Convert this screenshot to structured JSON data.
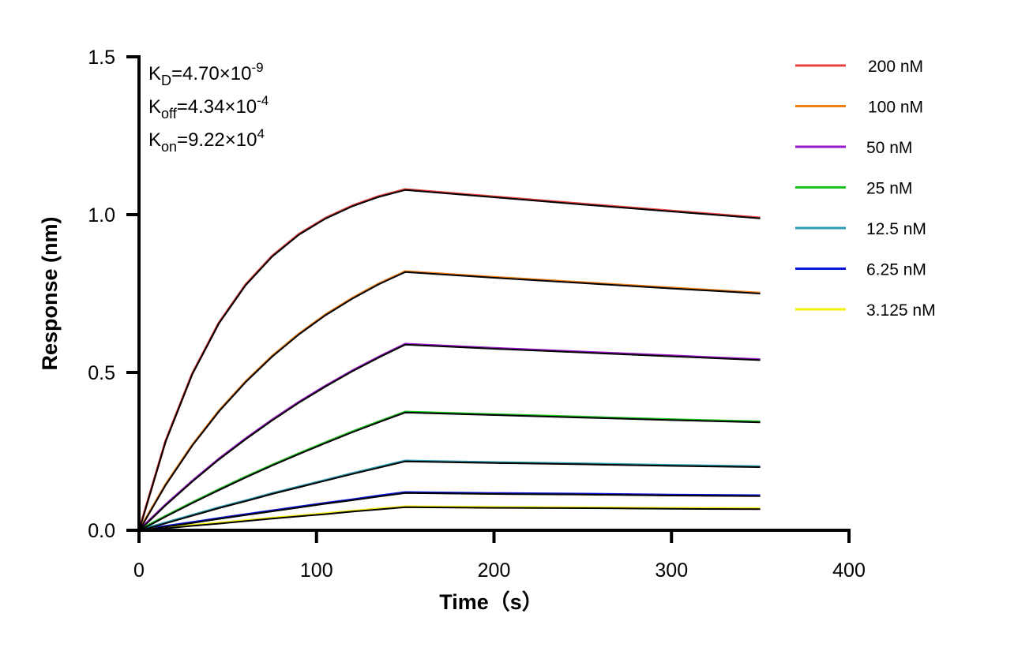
{
  "chart_data": {
    "type": "line",
    "xlabel": "Time（s）",
    "ylabel": "Response (nm)",
    "xlim": [
      0,
      400
    ],
    "ylim": [
      0,
      1.5
    ],
    "xticks": [
      "0",
      "100",
      "200",
      "300",
      "400"
    ],
    "yticks": [
      "0.0",
      "0.5",
      "1.0",
      "1.5"
    ],
    "grid": false,
    "legend_position": "top-right",
    "fit_color": "#000000",
    "annotations": [
      {
        "base": "K",
        "sub": "D",
        "text": "=4.70×10",
        "sup": "-9"
      },
      {
        "base": "K",
        "sub": "off",
        "text": "=4.34×10",
        "sup": "-4"
      },
      {
        "base": "K",
        "sub": "on",
        "text": "=9.22×10",
        "sup": "4"
      }
    ],
    "x": [
      0,
      15,
      30,
      45,
      60,
      75,
      90,
      105,
      120,
      135,
      150,
      200,
      250,
      300,
      350
    ],
    "series": [
      {
        "name": "200 nM",
        "color": "#e8413c",
        "values": [
          0,
          0.283,
          0.496,
          0.657,
          0.778,
          0.869,
          0.938,
          0.989,
          1.028,
          1.058,
          1.08,
          1.057,
          1.034,
          1.012,
          0.99
        ]
      },
      {
        "name": "100 nM",
        "color": "#f07f16",
        "values": [
          0,
          0.145,
          0.27,
          0.378,
          0.471,
          0.552,
          0.622,
          0.683,
          0.735,
          0.781,
          0.82,
          0.802,
          0.785,
          0.768,
          0.752
        ]
      },
      {
        "name": "50 nM",
        "color": "#9a17c8",
        "values": [
          0,
          0.081,
          0.156,
          0.226,
          0.29,
          0.35,
          0.406,
          0.457,
          0.505,
          0.549,
          0.59,
          0.577,
          0.565,
          0.553,
          0.541
        ]
      },
      {
        "name": "25 nM",
        "color": "#1ec21e",
        "values": [
          0,
          0.045,
          0.088,
          0.129,
          0.169,
          0.207,
          0.243,
          0.278,
          0.312,
          0.344,
          0.375,
          0.367,
          0.359,
          0.351,
          0.344
        ]
      },
      {
        "name": "12.5 nM",
        "color": "#2a9cb0",
        "values": [
          0,
          0.024,
          0.048,
          0.072,
          0.094,
          0.117,
          0.138,
          0.159,
          0.18,
          0.2,
          0.22,
          0.215,
          0.211,
          0.206,
          0.202
        ]
      },
      {
        "name": "6.25 nM",
        "color": "#0a14d8",
        "values": [
          0,
          0.013,
          0.025,
          0.038,
          0.05,
          0.062,
          0.074,
          0.086,
          0.097,
          0.109,
          0.12,
          0.117,
          0.115,
          0.112,
          0.11
        ]
      },
      {
        "name": "3.125 nM",
        "color": "#f5f00a",
        "values": [
          0,
          0.008,
          0.016,
          0.023,
          0.031,
          0.039,
          0.046,
          0.053,
          0.061,
          0.068,
          0.075,
          0.073,
          0.072,
          0.07,
          0.069
        ]
      }
    ]
  }
}
